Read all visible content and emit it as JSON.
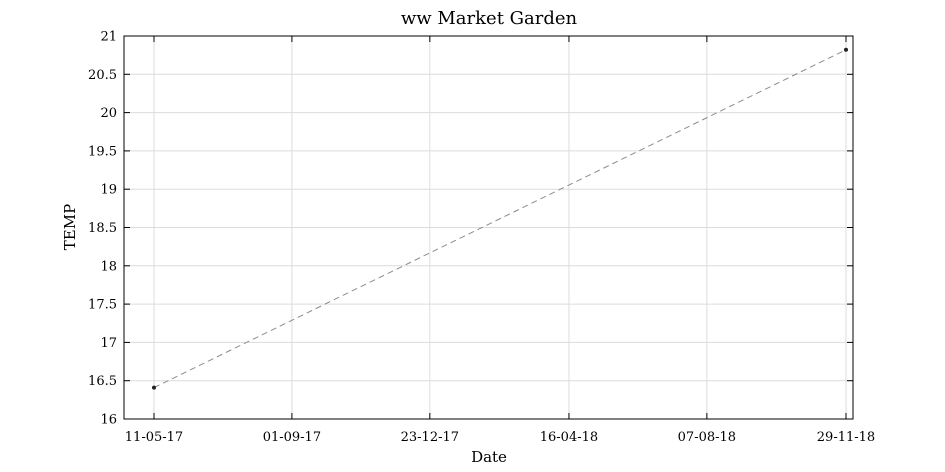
{
  "chart_data": {
    "type": "line",
    "title": "ww Market Garden",
    "xlabel": "Date",
    "ylabel": "TEMP",
    "x_tick_labels": [
      "11-05-17",
      "01-09-17",
      "23-12-17",
      "16-04-18",
      "07-08-18",
      "29-11-18"
    ],
    "x_tick_dates": [
      "2017-05-11",
      "2017-09-01",
      "2017-12-23",
      "2018-04-16",
      "2018-08-07",
      "2018-11-29"
    ],
    "xlim": [
      "2017-05-11",
      "2018-11-29"
    ],
    "y_ticks": [
      16,
      16.5,
      17,
      17.5,
      18,
      18.5,
      19,
      19.5,
      20,
      20.5,
      21
    ],
    "ylim": [
      16,
      21
    ],
    "grid": true,
    "series": [
      {
        "points": [
          {
            "x": "2017-05-11",
            "y": 16.41
          },
          {
            "x": "2018-11-29",
            "y": 20.82
          }
        ],
        "line_style": "dashed",
        "line_color": "#8c8c8c",
        "marker": "dot",
        "marker_color": "#222222"
      }
    ]
  }
}
